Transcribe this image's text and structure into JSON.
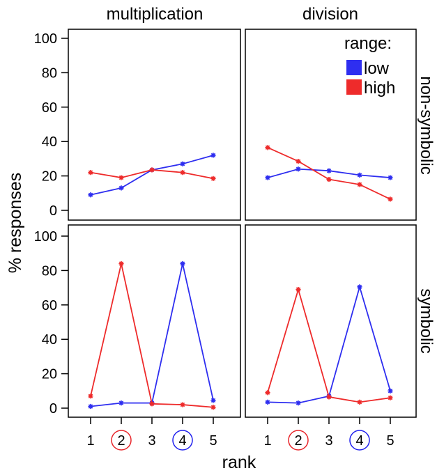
{
  "chart_data": {
    "type": "line",
    "xlabel": "rank",
    "ylabel": "% responses",
    "ylim": [
      0,
      100
    ],
    "yticks": [
      "0",
      "20",
      "40",
      "60",
      "80",
      "100"
    ],
    "x": [
      1,
      2,
      3,
      4,
      5
    ],
    "xticks": [
      "1",
      "2",
      "3",
      "4",
      "5"
    ],
    "circled_ticks": [
      {
        "value": 2,
        "color": "#e8252a"
      },
      {
        "value": 4,
        "color": "#2020ee"
      }
    ],
    "column_labels": [
      "multiplication",
      "division"
    ],
    "row_labels": [
      "non-symbolic",
      "symbolic"
    ],
    "legend": {
      "title": "range:",
      "position": "top-right",
      "entries": [
        {
          "label": "low",
          "color": "#2e2ef0"
        },
        {
          "label": "high",
          "color": "#ee2b2b"
        }
      ]
    },
    "panels": [
      {
        "column": "multiplication",
        "row": "non-symbolic",
        "series": [
          {
            "name": "low",
            "values": [
              9,
              13,
              23.5,
              27,
              32
            ]
          },
          {
            "name": "high",
            "values": [
              22,
              19,
              23.5,
              22,
              18.5
            ]
          }
        ]
      },
      {
        "column": "division",
        "row": "non-symbolic",
        "series": [
          {
            "name": "low",
            "values": [
              19,
              24,
              23,
              20.5,
              19
            ]
          },
          {
            "name": "high",
            "values": [
              36.5,
              28.5,
              18,
              15,
              6.5
            ]
          }
        ]
      },
      {
        "column": "multiplication",
        "row": "symbolic",
        "series": [
          {
            "name": "low",
            "values": [
              1,
              3,
              3,
              84,
              4.5
            ]
          },
          {
            "name": "high",
            "values": [
              7,
              84,
              2.5,
              2,
              0.5
            ]
          }
        ]
      },
      {
        "column": "division",
        "row": "symbolic",
        "series": [
          {
            "name": "low",
            "values": [
              3.5,
              3,
              7,
              70.5,
              10
            ]
          },
          {
            "name": "high",
            "values": [
              9,
              69,
              6.5,
              3.5,
              6
            ]
          }
        ]
      }
    ]
  }
}
